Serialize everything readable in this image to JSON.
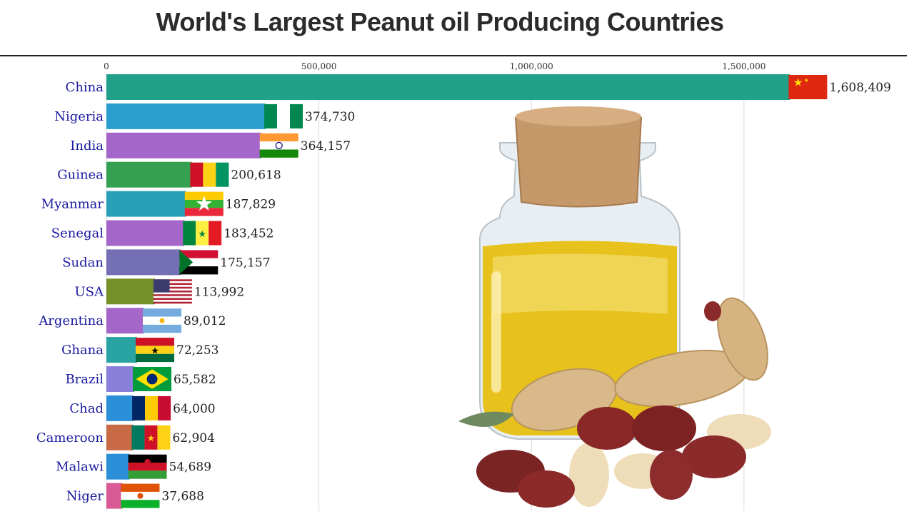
{
  "chart_data": {
    "type": "bar",
    "orientation": "horizontal",
    "title": "World's Largest Peanut oil Producing Countries",
    "xlim": [
      0,
      1680000
    ],
    "x_ticks": [
      {
        "value": 0,
        "label": "0"
      },
      {
        "value": 500000,
        "label": "500,000"
      },
      {
        "value": 1000000,
        "label": "1,000,000"
      },
      {
        "value": 1500000,
        "label": "1,500,000"
      }
    ],
    "grid": true,
    "categories": [
      "China",
      "Nigeria",
      "India",
      "Guinea",
      "Myanmar",
      "Senegal",
      "Sudan",
      "USA",
      "Argentina",
      "Ghana",
      "Brazil",
      "Chad",
      "Cameroon",
      "Malawi",
      "Niger"
    ],
    "values": [
      1608409,
      374730,
      364157,
      200618,
      187829,
      183452,
      175157,
      113992,
      89012,
      72253,
      65582,
      64000,
      62904,
      54689,
      37688
    ],
    "value_labels": [
      "1,608,409",
      "374,730",
      "364,157",
      "200,618",
      "187,829",
      "183,452",
      "175,157",
      "113,992",
      "89,012",
      "72,253",
      "65,582",
      "64,000",
      "62,904",
      "54,689",
      "37,688"
    ],
    "bar_colors": [
      "#21a08a",
      "#2a9fcf",
      "#a566c9",
      "#35a04f",
      "#2a9fb8",
      "#a566c9",
      "#7570b5",
      "#76902a",
      "#a566c9",
      "#2aa3a3",
      "#8a80dc",
      "#2a8fd8",
      "#c86a45",
      "#2a8fd8",
      "#d95a94"
    ],
    "flags": [
      "china-flag",
      "nigeria-flag",
      "india-flag",
      "guinea-flag",
      "myanmar-flag",
      "senegal-flag",
      "sudan-flag",
      "usa-flag",
      "argentina-flag",
      "ghana-flag",
      "brazil-flag",
      "chad-flag",
      "cameroon-flag",
      "malawi-flag",
      "niger-flag"
    ]
  }
}
